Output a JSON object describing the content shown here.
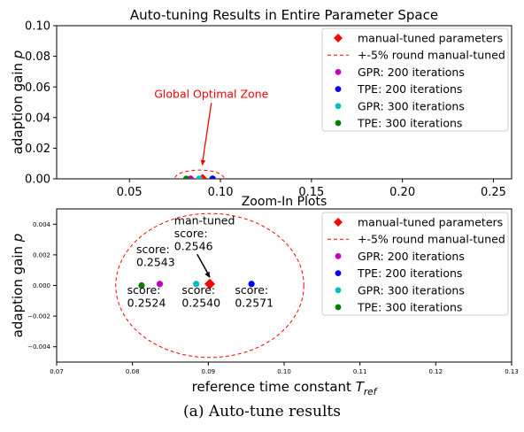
{
  "colors": {
    "manual": "#ff0000",
    "gpr200": "#bf00bf",
    "tpe200": "#0000ff",
    "gpr300": "#00bfbf",
    "tpe300": "#008000",
    "ellipse": "#ff0000"
  },
  "caption": "(a) Auto-tune results",
  "chart_data": [
    {
      "type": "scatter",
      "title": "Auto-tuning Results in Entire Parameter Space",
      "xlabel": "",
      "ylabel": "adaption gain",
      "ylabel_symbol": "p",
      "xlim": [
        0.01,
        0.26
      ],
      "ylim": [
        0.0,
        0.1
      ],
      "xticks": [
        0.05,
        0.1,
        0.15,
        0.2,
        0.25
      ],
      "xtick_labels": [
        "0.05",
        "0.10",
        "0.15",
        "0.20",
        "0.25"
      ],
      "yticks": [
        0.0,
        0.02,
        0.04,
        0.06,
        0.08,
        0.1
      ],
      "ytick_labels": [
        "0.00",
        "0.02",
        "0.04",
        "0.06",
        "0.08",
        "0.10"
      ],
      "legend": {
        "position": "top-right",
        "entries": [
          {
            "label": "manual-tuned parameters",
            "marker": "diamond",
            "color": "#ff0000"
          },
          {
            "label": "+-5% round manual-tuned",
            "marker": "dashed",
            "color": "#ff0000"
          },
          {
            "label": "GPR: 200 iterations",
            "marker": "dot",
            "color": "#bf00bf"
          },
          {
            "label": "TPE: 200 iterations",
            "marker": "dot",
            "color": "#0000ff"
          },
          {
            "label": "GPR: 300 iterations",
            "marker": "dot",
            "color": "#00bfbf"
          },
          {
            "label": "TPE: 300 iterations",
            "marker": "dot",
            "color": "#008000"
          }
        ]
      },
      "series": [
        {
          "name": "manual-tuned parameters",
          "marker": "diamond",
          "color": "#ff0000",
          "points": [
            {
              "x": 0.0902,
              "y": 0.0001
            }
          ]
        },
        {
          "name": "GPR: 200 iterations",
          "marker": "dot",
          "color": "#bf00bf",
          "points": [
            {
              "x": 0.0836,
              "y": 0.0001
            }
          ]
        },
        {
          "name": "TPE: 200 iterations",
          "marker": "dot",
          "color": "#0000ff",
          "points": [
            {
              "x": 0.0957,
              "y": 0.0001
            }
          ]
        },
        {
          "name": "GPR: 300 iterations",
          "marker": "dot",
          "color": "#00bfbf",
          "points": [
            {
              "x": 0.0884,
              "y": 0.0001
            }
          ]
        },
        {
          "name": "TPE: 300 iterations",
          "marker": "dot",
          "color": "#008000",
          "points": [
            {
              "x": 0.0812,
              "y": 0.0
            }
          ]
        }
      ],
      "ellipse": {
        "cx": 0.0885,
        "cy": 0.0002,
        "rx": 0.0135,
        "ry": 0.0055
      },
      "annotations": [
        {
          "text": "Global Optimal Zone",
          "color": "#ff0000",
          "text_x": 0.095,
          "text_y": 0.053,
          "arrow_to_x": 0.09,
          "arrow_to_y": 0.0085
        }
      ]
    },
    {
      "type": "scatter",
      "title": "Zoom-In Plots",
      "xlabel": "reference time constant",
      "xlabel_symbol": "T",
      "xlabel_subscript": "ref",
      "ylabel": "adaption gain",
      "ylabel_symbol": "p",
      "xlim": [
        0.07,
        0.13
      ],
      "ylim": [
        -0.005,
        0.005
      ],
      "xticks": [
        0.07,
        0.08,
        0.09,
        0.1,
        0.11,
        0.12,
        0.13
      ],
      "xtick_labels": [
        "0.07",
        "0.08",
        "0.09",
        "0.10",
        "0.11",
        "0.12",
        "0.13"
      ],
      "yticks": [
        -0.004,
        -0.002,
        0.0,
        0.002,
        0.004
      ],
      "ytick_labels": [
        "−0.004",
        "−0.002",
        "0.000",
        "0.002",
        "0.004"
      ],
      "legend": {
        "position": "top-right",
        "entries": [
          {
            "label": "manual-tuned parameters",
            "marker": "diamond",
            "color": "#ff0000"
          },
          {
            "label": "+-5% round manual-tuned",
            "marker": "dashed",
            "color": "#ff0000"
          },
          {
            "label": "GPR: 200 iterations",
            "marker": "dot",
            "color": "#bf00bf"
          },
          {
            "label": "TPE: 200 iterations",
            "marker": "dot",
            "color": "#0000ff"
          },
          {
            "label": "GPR: 300 iterations",
            "marker": "dot",
            "color": "#00bfbf"
          },
          {
            "label": "TPE: 300 iterations",
            "marker": "dot",
            "color": "#008000"
          }
        ]
      },
      "series": [
        {
          "name": "manual-tuned parameters",
          "marker": "diamond",
          "color": "#ff0000",
          "points": [
            {
              "x": 0.0902,
              "y": 0.0001
            }
          ]
        },
        {
          "name": "GPR: 200 iterations",
          "marker": "dot",
          "color": "#bf00bf",
          "points": [
            {
              "x": 0.0836,
              "y": 0.0001
            }
          ]
        },
        {
          "name": "TPE: 200 iterations",
          "marker": "dot",
          "color": "#0000ff",
          "points": [
            {
              "x": 0.0957,
              "y": 0.0001
            }
          ]
        },
        {
          "name": "GPR: 300 iterations",
          "marker": "dot",
          "color": "#00bfbf",
          "points": [
            {
              "x": 0.0884,
              "y": 0.0001
            }
          ]
        },
        {
          "name": "TPE: 300 iterations",
          "marker": "dot",
          "color": "#008000",
          "points": [
            {
              "x": 0.0812,
              "y": 0.0
            }
          ]
        }
      ],
      "ellipse": {
        "cx": 0.0902,
        "cy": 0.0,
        "rx": 0.0124,
        "ry": 0.0047
      },
      "annotations": [
        {
          "lines": [
            "man-tuned",
            "score:",
            "0.2546"
          ],
          "text_x": 0.0855,
          "text_y": 0.004,
          "arrow_to_x": 0.0902,
          "arrow_to_y": 0.0005
        },
        {
          "lines": [
            "score:",
            "0.2543"
          ],
          "text_x": 0.0805,
          "text_y": 0.0021
        },
        {
          "lines": [
            "score:",
            "0.2524"
          ],
          "text_x": 0.0793,
          "text_y": -0.00055
        },
        {
          "lines": [
            "score:",
            "0.2540"
          ],
          "text_x": 0.0865,
          "text_y": -0.00055
        },
        {
          "lines": [
            "score:",
            "0.2571"
          ],
          "text_x": 0.0935,
          "text_y": -0.00055
        }
      ]
    }
  ]
}
